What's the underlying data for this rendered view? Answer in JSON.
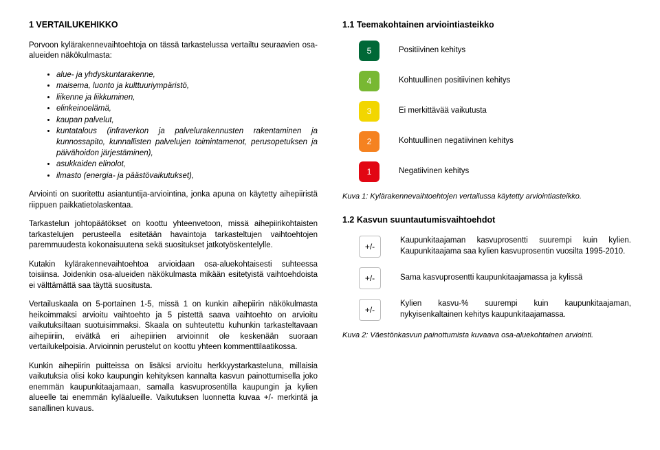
{
  "heading_main": "1  VERTAILUKEHIKKO",
  "intro": "Porvoon kylärakennevaihtoehtoja on tässä tarkastelussa vertailtu seuraavien osa-alueiden näkökulmasta:",
  "bullets": [
    "alue- ja yhdyskuntarakenne,",
    "maisema, luonto ja kulttuuriympäristö,",
    "liikenne ja liikkuminen,",
    "elinkeinoelämä,",
    "kaupan palvelut,",
    "kuntatalous (infraverkon ja palvelurakennusten rakentaminen ja kunnossapito, kunnallisten palvelujen toimintamenot, perusopetuksen ja päivähoidon järjestäminen),",
    "asukkaiden elinolot,",
    "ilmasto (energia- ja päästövaikutukset),"
  ],
  "para2": "Arviointi on suoritettu asiantuntija-arviointina, jonka apuna on käytetty aihepiiristä riippuen paikkatietolaskentaa.",
  "para3": "Tarkastelun johtopäätökset on koottu yhteenvetoon, missä aihepiirikohtaisten tarkastelujen perusteella esitetään havaintoja tarkasteltujen vaihtoehtojen paremmuudesta kokonaisuutena sekä suositukset jatkotyöskentelylle.",
  "para4": "Kutakin kylärakennevaihtoehtoa arvioidaan osa-aluekohtaisesti suhteessa toisiinsa. Joidenkin osa-alueiden näkökulmasta mikään esitetyistä vaihtoehdoista ei välttämättä saa täyttä suositusta.",
  "para5": "Vertailuskaala on 5-portainen 1-5, missä 1 on kunkin aihepiirin näkökulmasta heikoimmaksi arvioitu vaihtoehto ja 5 pistettä saava vaihtoehto on arvioitu vaikutuksiltaan suotuisimmaksi. Skaala on suhteutettu kuhunkin tarkasteltavaan aihepiiriin, eivätkä eri aihepiirien arvioinnit ole keskenään suoraan vertailukelpoisia. Arvioinnin perustelut on koottu yhteen kommenttilaatikossa.",
  "para6": "Kunkin aihepiirin puitteissa on lisäksi arvioitu herkkyystarkasteluna, millaisia vaikutuksia olisi koko kaupungin kehityksen kannalta kasvun painottumisella joko enemmän kaupunkitaajamaan, samalla kasvuprosentilla kaupungin ja kylien alueelle tai enemmän kyläalueille. Vaikutuksen luonnetta kuvaa +/- merkintä ja sanallinen kuvaus.",
  "heading_11": "1.1  Teemakohtainen arviointiasteikko",
  "scale": [
    {
      "num": "5",
      "color": "#006837",
      "label": "Positiivinen kehitys"
    },
    {
      "num": "4",
      "color": "#78b833",
      "label": "Kohtuullinen positiivinen kehitys"
    },
    {
      "num": "3",
      "color": "#f2d600",
      "label": "Ei merkittävää vaikutusta"
    },
    {
      "num": "2",
      "color": "#f58220",
      "label": "Kohtuullinen negatiivinen kehitys"
    },
    {
      "num": "1",
      "color": "#e20613",
      "label": "Negatiivinen kehitys"
    }
  ],
  "caption1": "Kuva 1: Kylärakennevaihtoehtojen vertailussa käytetty arviointiasteikko.",
  "heading_12": "1.2  Kasvun suuntautumisvaihtoehdot",
  "growth": [
    {
      "sym": "+/-",
      "label": "Kaupunkitaajaman kasvuprosentti suurempi kuin kylien. Kaupunkitaajama saa kylien kasvuprosentin vuosilta 1995-2010."
    },
    {
      "sym": "+/-",
      "label": "Sama kasvuprosentti kaupunkitaajamassa ja kylissä"
    },
    {
      "sym": "+/-",
      "label": "Kylien kasvu-% suurempi kuin kaupunkitaajaman, nykyisenkaltainen kehitys kaupunkitaajamassa."
    }
  ],
  "caption2": "Kuva 2: Väestönkasvun painottumista kuvaava osa-aluekohtainen arviointi."
}
